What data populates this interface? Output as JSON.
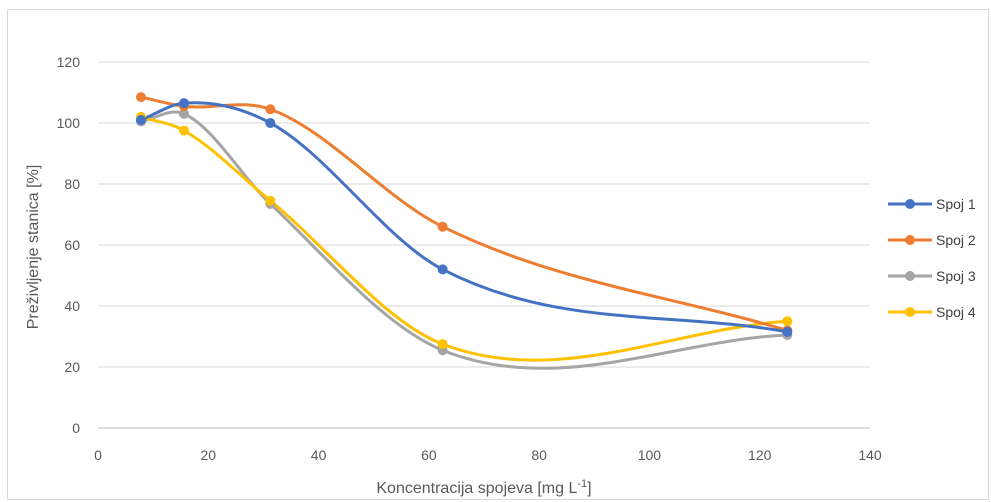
{
  "chart_data": {
    "type": "line",
    "smooth": true,
    "xlabel": "Koncentracija spojeva [mg L",
    "xlabel_superscript": "-1",
    "xlabel_suffix": "]",
    "ylabel": "Preživljenje stanica [%]",
    "xlim": [
      0,
      140
    ],
    "ylim": [
      0,
      120
    ],
    "x_ticks": [
      0,
      20,
      40,
      60,
      80,
      100,
      120,
      140
    ],
    "y_ticks": [
      0,
      20,
      40,
      60,
      80,
      100,
      120
    ],
    "grid": "horizontal",
    "legend_position": "right",
    "x": [
      7.8,
      15.6,
      31.25,
      62.5,
      125
    ],
    "series": [
      {
        "name": "Spoj 1",
        "color": "#4472C4",
        "values": [
          101,
          106.5,
          100,
          52,
          31.5
        ]
      },
      {
        "name": "Spoj 2",
        "color": "#ED7D31",
        "values": [
          108.5,
          105.5,
          104.5,
          66,
          32
        ]
      },
      {
        "name": "Spoj 3",
        "color": "#A5A5A5",
        "values": [
          100.5,
          103,
          73.5,
          25.5,
          30.5
        ]
      },
      {
        "name": "Spoj 4",
        "color": "#FFC000",
        "values": [
          102,
          97.5,
          74.5,
          27.5,
          35
        ]
      }
    ]
  }
}
